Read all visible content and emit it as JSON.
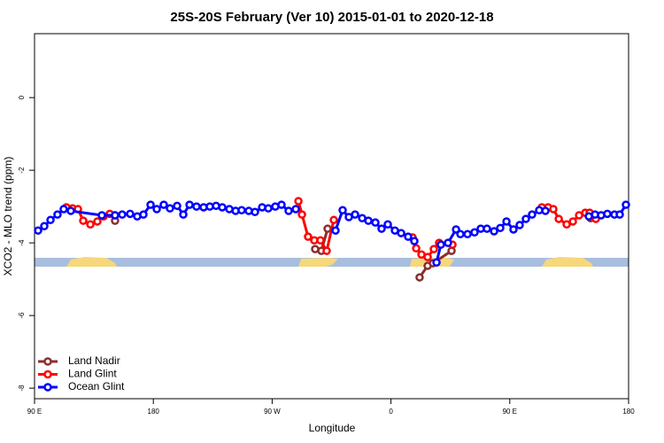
{
  "chart_data": {
    "type": "line",
    "title": "25S-20S February (Ver 10)   2015-01-01 to 2020-12-18",
    "x_label": "Longitude",
    "y_label": "XCO2 - MLO trend (ppm)",
    "xlim": [
      90,
      540
    ],
    "xticks": [
      {
        "value": 90,
        "label": "90 E"
      },
      {
        "value": 180,
        "label": "180"
      },
      {
        "value": 270,
        "label": "90 W"
      },
      {
        "value": 360,
        "label": "0"
      },
      {
        "value": 450,
        "label": "90 E"
      },
      {
        "value": 540,
        "label": "180"
      }
    ],
    "ylim": [
      -8.29,
      1.76
    ],
    "yticks": [
      0,
      -2,
      -4,
      -6,
      -8
    ],
    "legend": "bottom-left",
    "series": [
      {
        "name": "Land Nadir",
        "color": "#8b2e2e",
        "x": [
          151.0,
          null,
          302.6,
          307.3,
          312.0,
          null,
          381.7,
          387.8,
          391.8,
          405.9,
          null,
          511.2
        ],
        "values": [
          -3.39,
          null,
          -4.17,
          -4.22,
          -3.61,
          null,
          -4.95,
          -4.63,
          -4.56,
          -4.22,
          null,
          -3.32
        ]
      },
      {
        "name": "Land Glint",
        "color": "#ff0000",
        "x": [
          114.1,
          118.8,
          122.9,
          126.9,
          132.3,
          137.6,
          142.3,
          147.0,
          151.0,
          null,
          289.9,
          292.6,
          297.2,
          301.9,
          306.6,
          311.3,
          316.7,
          null,
          376.4,
          379.1,
          383.1,
          387.8,
          392.5,
          396.5,
          406.6,
          null,
          474.3,
          479.0,
          483.0,
          487.1,
          493.1,
          497.8,
          502.5,
          507.2,
          510.5,
          515.2
        ],
        "values": [
          -3.02,
          -3.05,
          -3.07,
          -3.39,
          -3.49,
          -3.41,
          -3.27,
          -3.2,
          -3.24,
          null,
          -2.85,
          -3.22,
          -3.83,
          -3.93,
          -3.93,
          -4.22,
          -3.37,
          null,
          -3.85,
          -4.15,
          -4.32,
          -4.39,
          -4.17,
          -4.0,
          -4.05,
          null,
          -3.02,
          -3.02,
          -3.07,
          -3.34,
          -3.49,
          -3.41,
          -3.24,
          -3.17,
          -3.17,
          -3.34
        ]
      },
      {
        "name": "Ocean Glint",
        "color": "#0000ff",
        "x": [
          92.7,
          97.4,
          102.1,
          107.4,
          112.1,
          117.5,
          141.0,
          151.0,
          156.4,
          162.4,
          167.8,
          172.5,
          177.9,
          182.6,
          187.9,
          192.6,
          198.0,
          202.7,
          207.4,
          212.7,
          218.1,
          222.8,
          227.5,
          232.2,
          237.6,
          242.3,
          246.9,
          252.3,
          257.0,
          262.4,
          267.1,
          272.4,
          277.1,
          282.5,
          287.9,
          null,
          318.0,
          323.4,
          328.1,
          332.8,
          338.2,
          342.9,
          348.2,
          352.9,
          357.6,
          363.0,
          367.7,
          373.0,
          377.7,
          null,
          394.5,
          397.8,
          403.2,
          409.3,
          412.6,
          418.0,
          423.3,
          428.0,
          432.7,
          438.1,
          442.8,
          447.5,
          452.8,
          457.5,
          462.2,
          466.9,
          472.3,
          477.0,
          null,
          509.9,
          514.6,
          519.2,
          523.9,
          529.3,
          533.3,
          538.0
        ],
        "values": [
          -3.66,
          -3.54,
          -3.37,
          -3.22,
          -3.07,
          -3.12,
          -3.24,
          -3.24,
          -3.22,
          -3.2,
          -3.27,
          -3.22,
          -2.95,
          -3.07,
          -2.95,
          -3.05,
          -2.98,
          -3.22,
          -2.95,
          -3.0,
          -3.02,
          -3.0,
          -2.98,
          -3.02,
          -3.07,
          -3.12,
          -3.1,
          -3.12,
          -3.15,
          -3.02,
          -3.05,
          -3.0,
          -2.95,
          -3.12,
          -3.07,
          null,
          -3.66,
          -3.1,
          -3.29,
          -3.22,
          -3.32,
          -3.39,
          -3.44,
          -3.61,
          -3.49,
          -3.66,
          -3.73,
          -3.83,
          -3.95,
          null,
          -4.54,
          -4.05,
          -4.0,
          -3.63,
          -3.76,
          -3.76,
          -3.71,
          -3.61,
          -3.61,
          -3.68,
          -3.59,
          -3.41,
          -3.63,
          -3.51,
          -3.34,
          -3.22,
          -3.1,
          -3.12,
          null,
          -3.27,
          -3.22,
          -3.24,
          -3.2,
          -3.22,
          -3.22,
          -2.95
        ]
      }
    ]
  }
}
